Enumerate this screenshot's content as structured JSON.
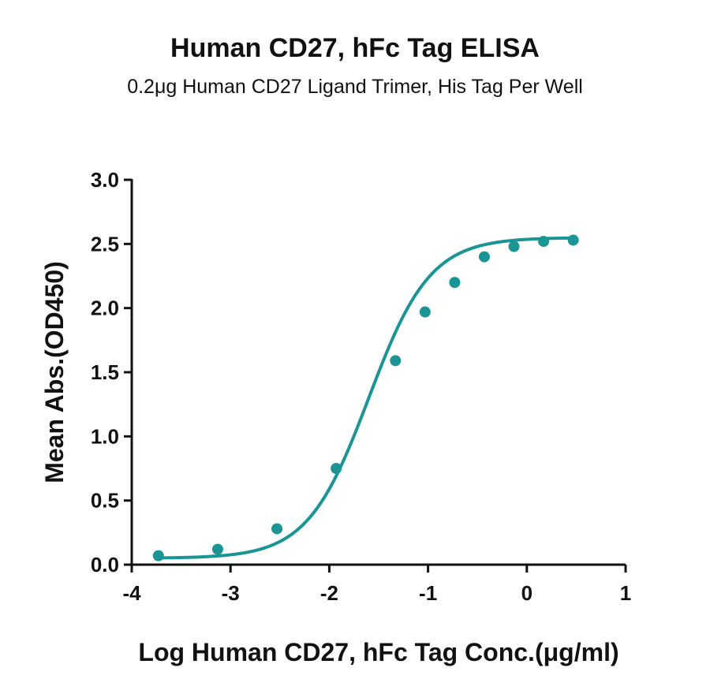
{
  "chart_data": {
    "type": "scatter",
    "title": "Human CD27, hFc Tag ELISA",
    "subtitle": "0.2μg Human CD27 Ligand Trimer, His Tag Per Well",
    "xlabel": "Log Human CD27, hFc Tag Conc.(μg/ml)",
    "ylabel": "Mean Abs.(OD450)",
    "xlim": [
      -4,
      1
    ],
    "ylim": [
      0,
      3
    ],
    "xticks": [
      "-4",
      "-3",
      "-2",
      "-1",
      "0",
      "1"
    ],
    "yticks": [
      "0.0",
      "0.5",
      "1.0",
      "1.5",
      "2.0",
      "2.5",
      "3.0"
    ],
    "grid": false,
    "legend": "none",
    "color": "#1a9494",
    "series": [
      {
        "x": [
          -3.73,
          -3.13,
          -2.53,
          -1.93,
          -1.33,
          -1.03,
          -0.73,
          -0.43,
          -0.13,
          0.17,
          0.47
        ],
        "y": [
          0.07,
          0.12,
          0.28,
          0.75,
          1.59,
          1.97,
          2.2,
          2.4,
          2.48,
          2.52,
          2.53
        ]
      }
    ],
    "fit_curve": {
      "model": "4PL",
      "bottom": 0.05,
      "top": 2.55,
      "logEC50": -1.6,
      "hill": 1.4
    }
  }
}
